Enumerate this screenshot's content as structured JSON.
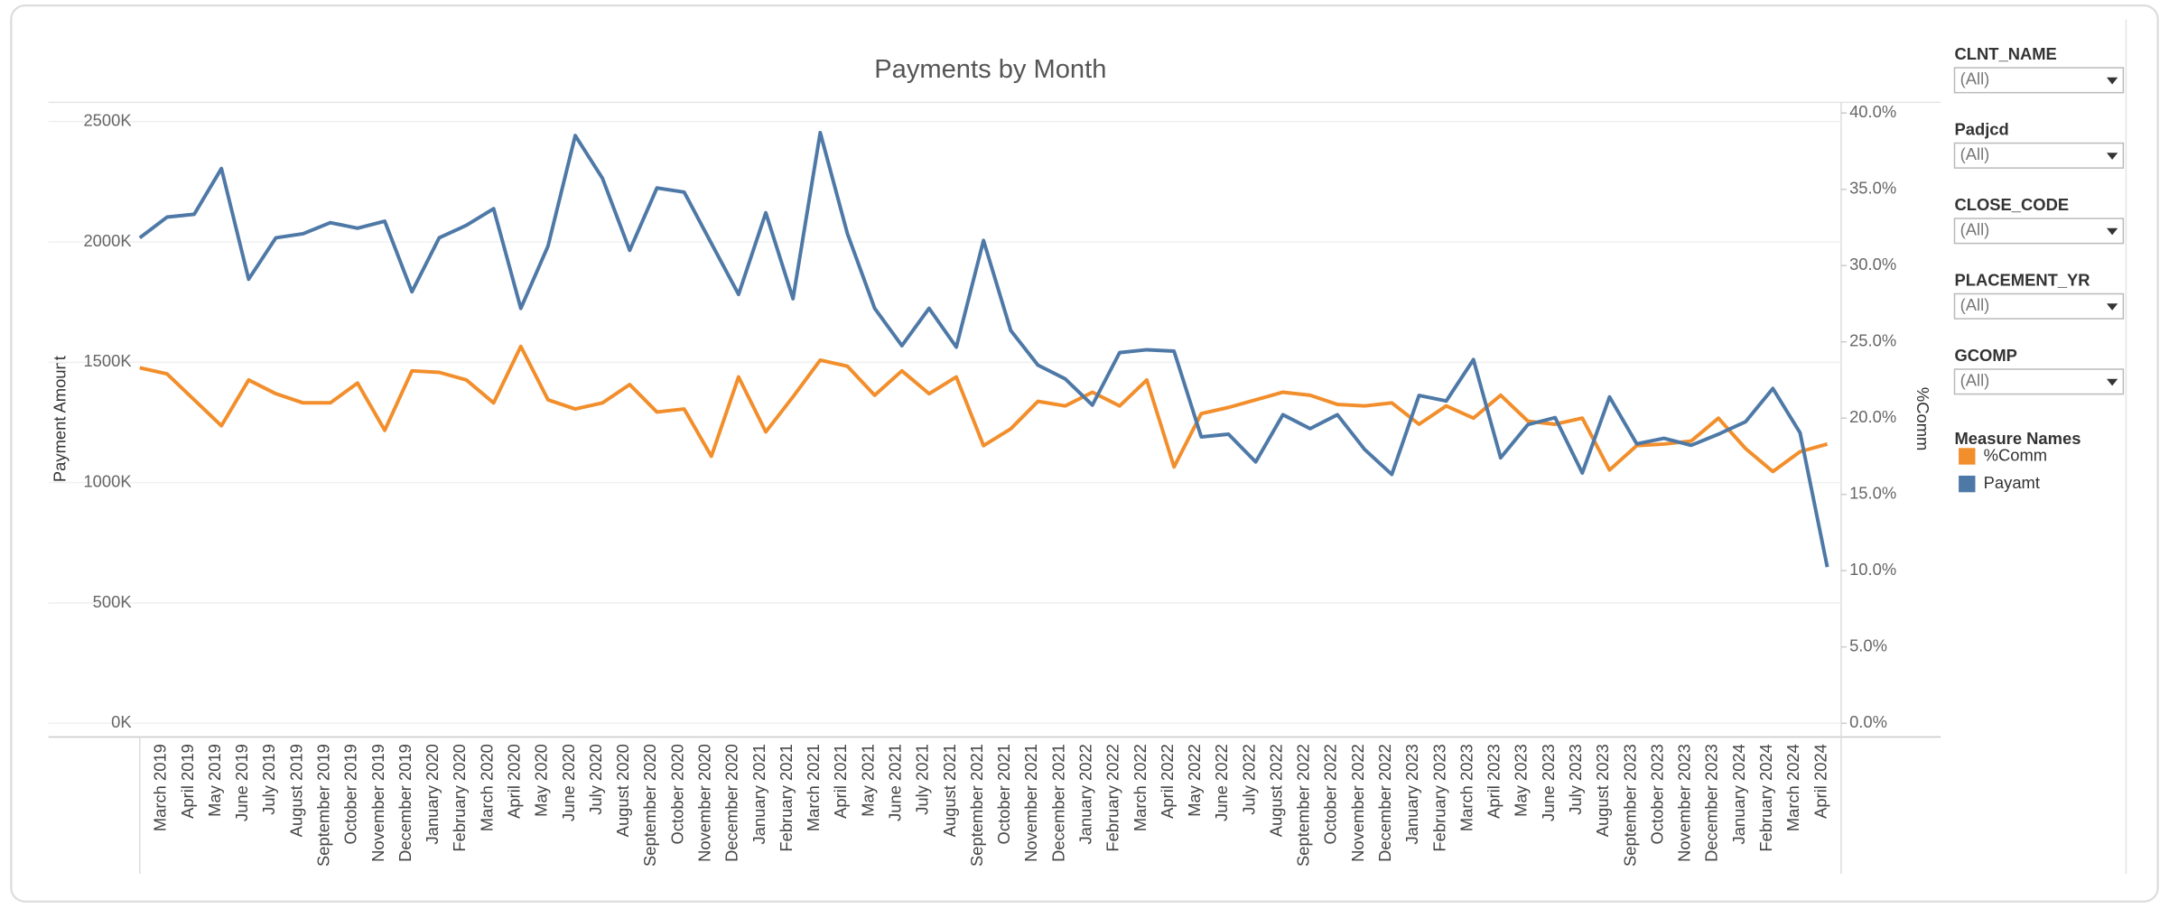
{
  "chart_data": {
    "type": "line",
    "title": "Payments by Month",
    "y_label": "Payment Amount",
    "y2_label": "%Comm",
    "legend_title": "Measure Names",
    "categories": [
      null,
      "March 2019",
      "April 2019",
      "May 2019",
      "June 2019",
      "July 2019",
      "August 2019",
      "September 2019",
      "October 2019",
      "November 2019",
      "December 2019",
      "January 2020",
      "February 2020",
      "March 2020",
      "April 2020",
      "May 2020",
      "June 2020",
      "July 2020",
      "August 2020",
      "September 2020",
      "October 2020",
      "November 2020",
      "December 2020",
      "January 2021",
      "February 2021",
      "March 2021",
      "April 2021",
      "May 2021",
      "June 2021",
      "July 2021",
      "August 2021",
      "September 2021",
      "October 2021",
      "November 2021",
      "December 2021",
      "January 2022",
      "February 2022",
      "March 2022",
      "April 2022",
      "May 2022",
      "June 2022",
      "July 2022",
      "August 2022",
      "September 2022",
      "October 2022",
      "November 2022",
      "December 2022",
      "January 2023",
      "February 2023",
      "March 2023",
      "April 2023",
      "May 2023",
      "June 2023",
      "July 2023",
      "August 2023",
      "September 2023",
      "October 2023",
      "November 2023",
      "December 2023",
      "January 2024",
      "February 2024",
      "March 2024",
      "April 2024"
    ],
    "series": [
      {
        "name": "%Comm",
        "color": "#f28e2b",
        "axis": "y2",
        "values": [
          23.3,
          22.9,
          21.2,
          19.5,
          22.5,
          21.6,
          21.0,
          21.0,
          22.3,
          19.2,
          23.1,
          23.0,
          22.5,
          21.0,
          24.7,
          21.2,
          20.6,
          21.0,
          22.2,
          20.4,
          20.6,
          17.5,
          22.7,
          19.1,
          21.4,
          23.8,
          23.4,
          21.5,
          23.1,
          21.6,
          22.7,
          18.2,
          19.3,
          21.1,
          20.8,
          21.7,
          20.8,
          22.5,
          16.8,
          20.3,
          20.7,
          21.2,
          21.7,
          21.5,
          20.9,
          20.8,
          21.0,
          19.6,
          20.8,
          20.0,
          21.5,
          19.8,
          19.6,
          20.0,
          16.6,
          18.2,
          18.3,
          18.5,
          20.0,
          18.0,
          16.5,
          17.8,
          18.3
        ]
      },
      {
        "name": "Payamt",
        "color": "#4e79a7",
        "values": [
          2017000,
          2103000,
          2115000,
          2305000,
          1845000,
          2017000,
          2034000,
          2080000,
          2057000,
          2086000,
          1793000,
          2017000,
          2069000,
          2138000,
          1724000,
          1983000,
          2442000,
          2264000,
          1965000,
          2224000,
          2207000,
          1994000,
          1782000,
          2121000,
          1764000,
          2454000,
          2034000,
          1724000,
          1569000,
          1724000,
          1563000,
          2006000,
          1632000,
          1488000,
          1431000,
          1322000,
          1540000,
          1552000,
          1546000,
          1190000,
          1201000,
          1086000,
          1282000,
          1224000,
          1282000,
          1138000,
          1034000,
          1362000,
          1339000,
          1511000,
          1103000,
          1241000,
          1270000,
          1040000,
          1356000,
          1161000,
          1184000,
          1155000,
          1201000,
          1253000,
          1391000,
          1207000,
          649000
        ]
      }
    ],
    "ylim": [
      -57000,
      2580000
    ],
    "yticks": [
      {
        "value": 0,
        "label": "0K"
      },
      {
        "value": 500000,
        "label": "500K"
      },
      {
        "value": 1000000,
        "label": "1000K"
      },
      {
        "value": 1500000,
        "label": "1500K"
      },
      {
        "value": 2000000,
        "label": "2000K"
      },
      {
        "value": 2500000,
        "label": "2500K"
      }
    ],
    "y2lim": [
      -0.9,
      40.7
    ],
    "y2ticks": [
      {
        "value": 0,
        "label": "0.0%"
      },
      {
        "value": 5,
        "label": "5.0%"
      },
      {
        "value": 10,
        "label": "10.0%"
      },
      {
        "value": 15,
        "label": "15.0%"
      },
      {
        "value": 20,
        "label": "20.0%"
      },
      {
        "value": 25,
        "label": "25.0%"
      },
      {
        "value": 30,
        "label": "30.0%"
      },
      {
        "value": 35,
        "label": "35.0%"
      },
      {
        "value": 40,
        "label": "40.0%"
      }
    ],
    "grid": true
  },
  "filters": [
    {
      "label": "CLNT_NAME",
      "value": "(All)"
    },
    {
      "label": "Padjcd",
      "value": "(All)"
    },
    {
      "label": "CLOSE_CODE",
      "value": "(All)"
    },
    {
      "label": "PLACEMENT_YR",
      "value": "(All)"
    },
    {
      "label": "GCOMP",
      "value": "(All)"
    }
  ]
}
